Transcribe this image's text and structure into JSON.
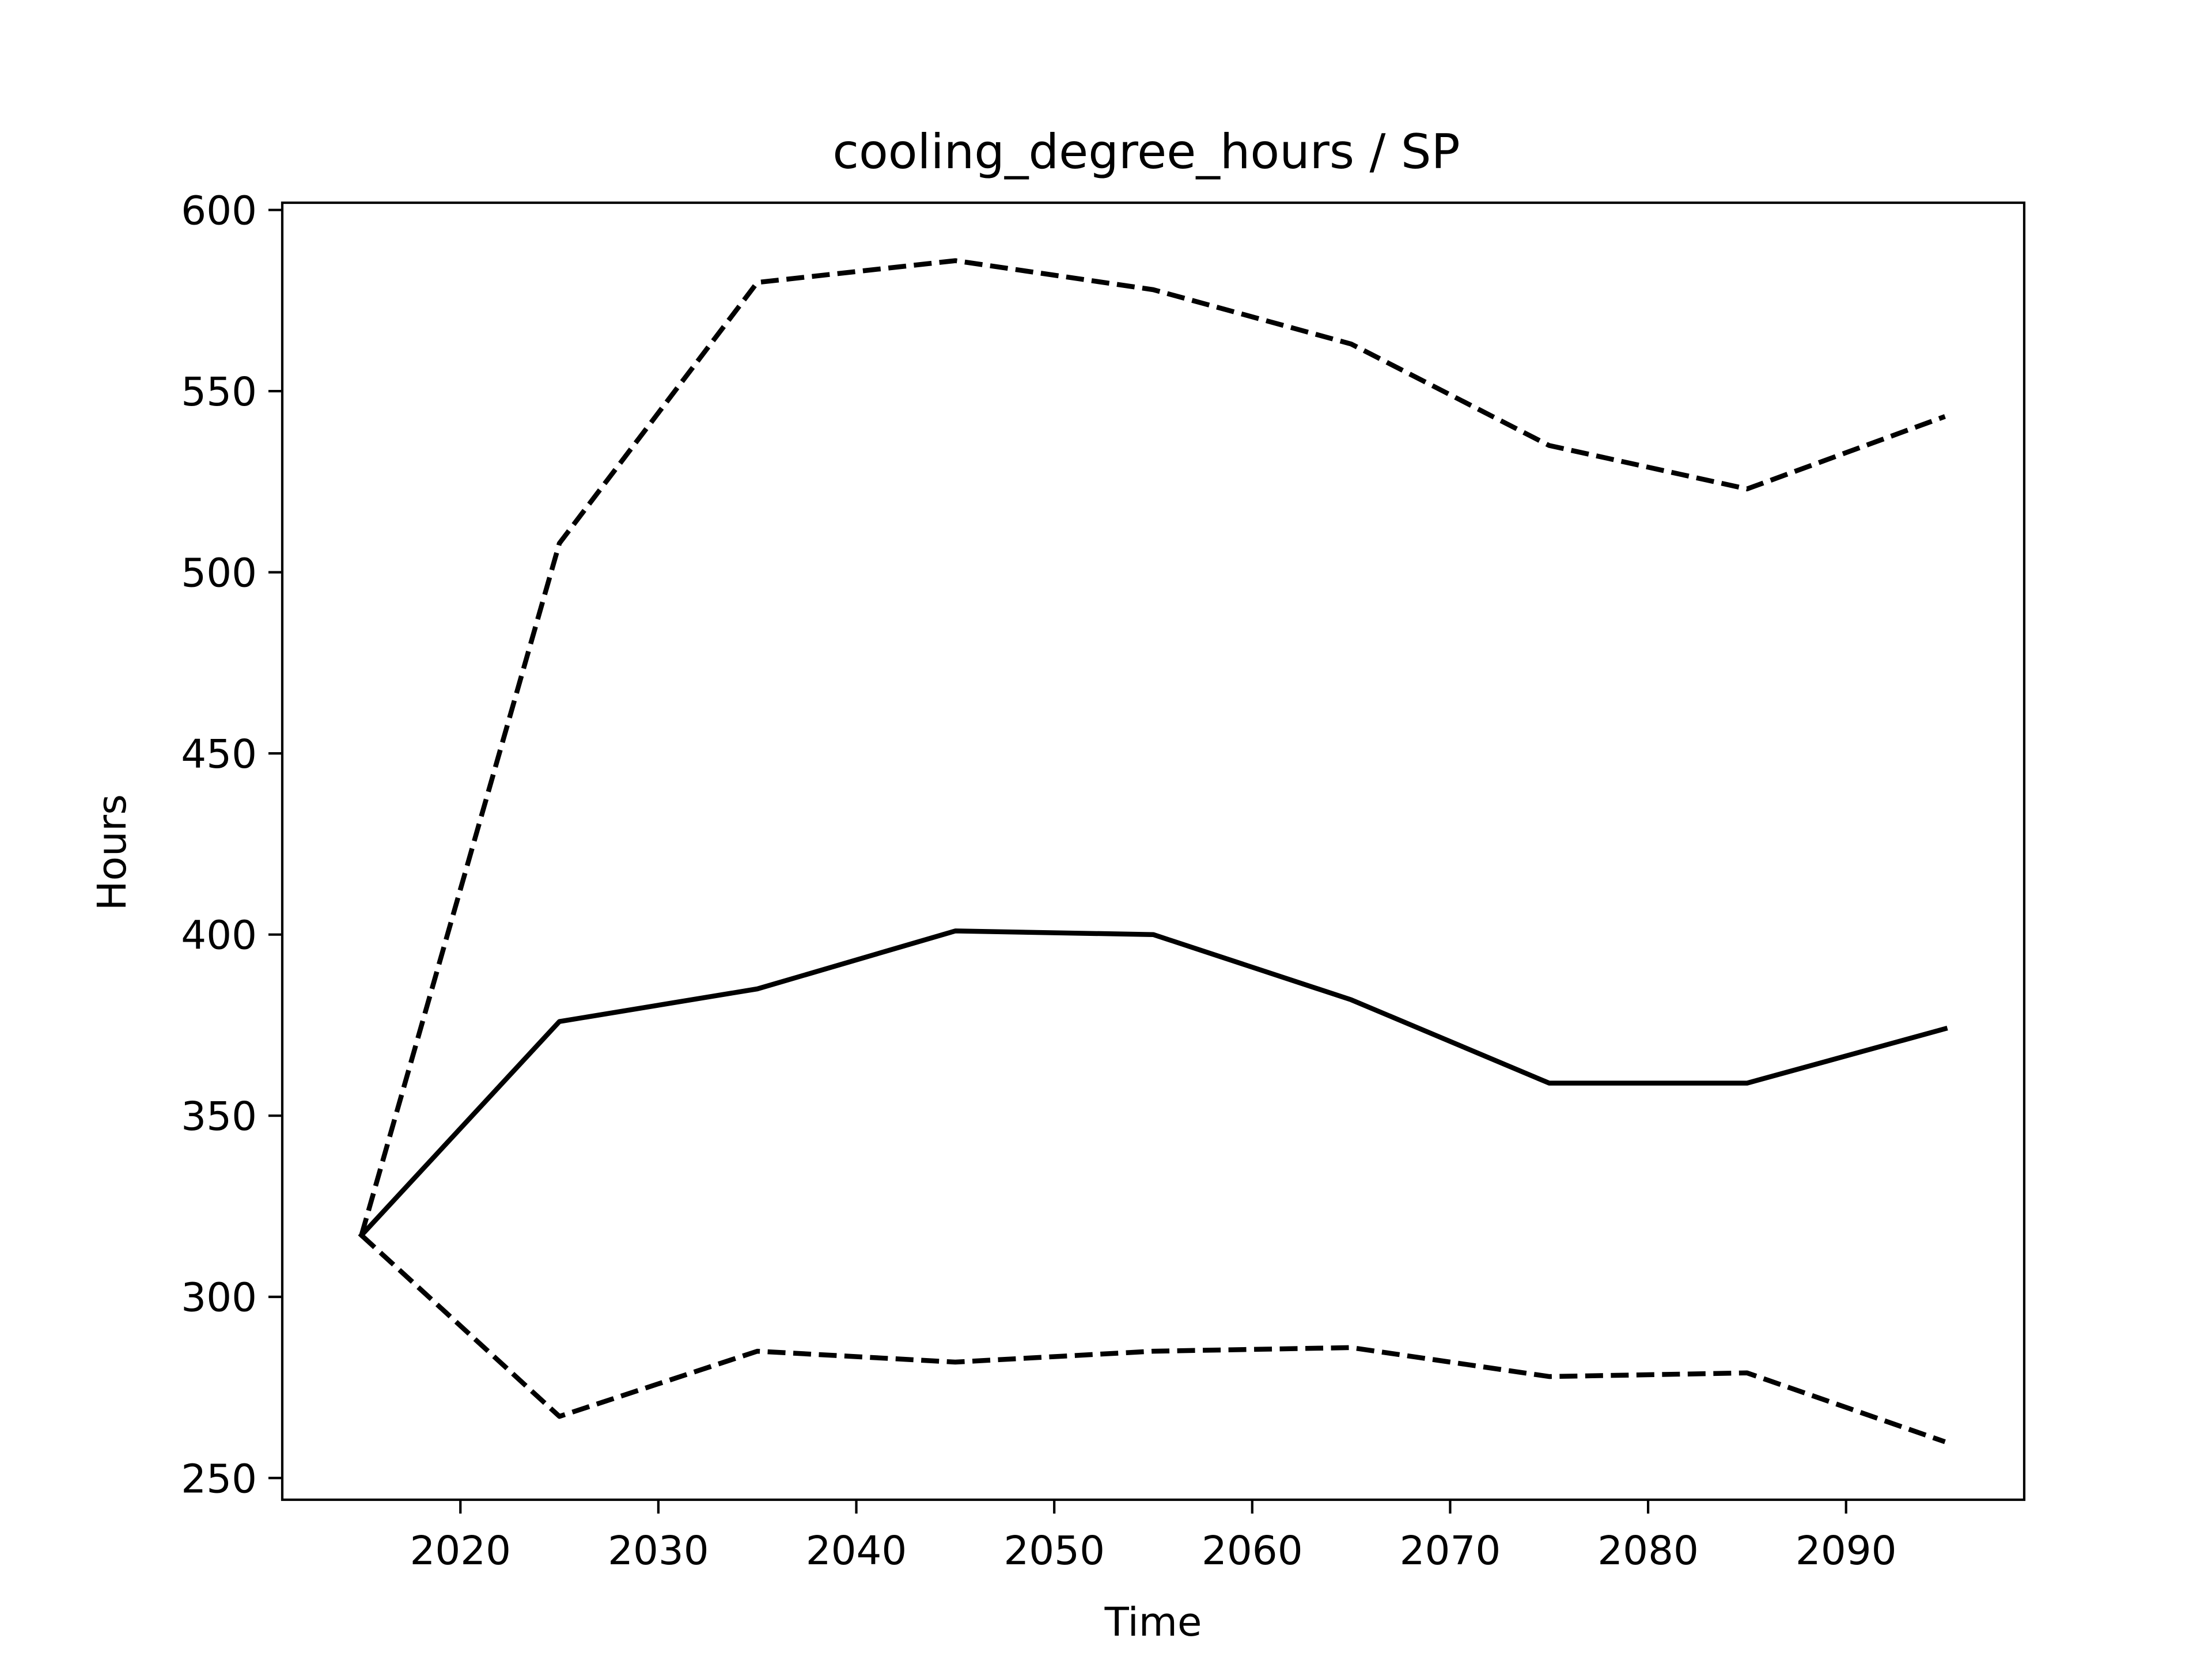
{
  "chart_data": {
    "type": "line",
    "title": "cooling_degree_hours / SP",
    "xlabel": "Time",
    "ylabel": "Hours",
    "xlim": [
      2011,
      2099
    ],
    "ylim": [
      244,
      602
    ],
    "x_ticks": [
      2020,
      2030,
      2040,
      2050,
      2060,
      2070,
      2080,
      2090
    ],
    "y_ticks": [
      250,
      300,
      350,
      400,
      450,
      500,
      550,
      600
    ],
    "x": [
      2015,
      2025,
      2035,
      2045,
      2055,
      2065,
      2075,
      2085,
      2095
    ],
    "series": [
      {
        "style": "dashed",
        "color": "#000000",
        "values": [
          317,
          508,
          580,
          586,
          578,
          563,
          535,
          523,
          543
        ]
      },
      {
        "style": "solid",
        "color": "#000000",
        "values": [
          317,
          376,
          385,
          401,
          400,
          382,
          359,
          359,
          374
        ]
      },
      {
        "style": "dashed",
        "color": "#000000",
        "values": [
          317,
          267,
          285,
          282,
          285,
          286,
          278,
          279,
          260
        ]
      }
    ],
    "grid": false,
    "legend": "none"
  }
}
